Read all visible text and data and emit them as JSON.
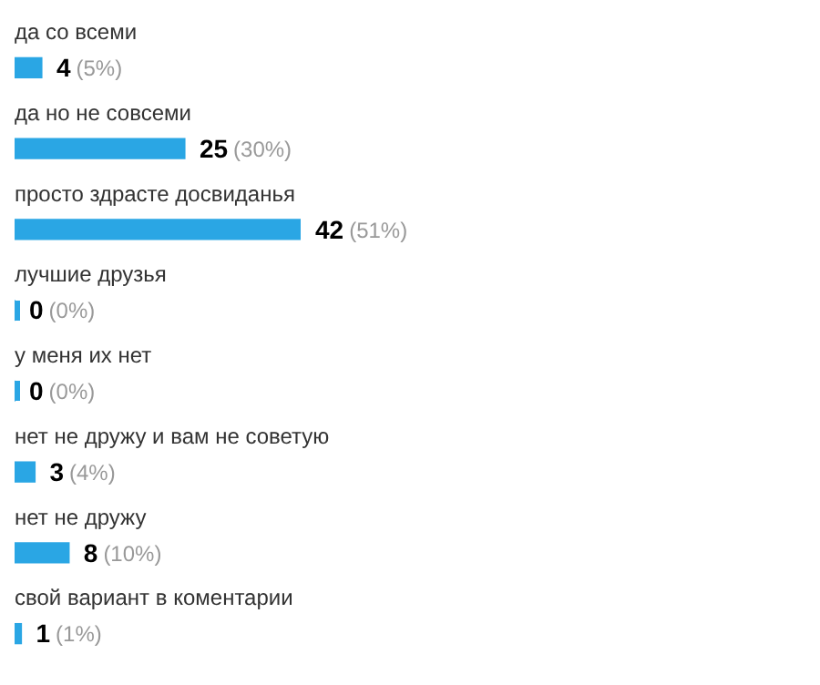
{
  "chart_data": {
    "type": "bar",
    "orientation": "horizontal",
    "categories": [
      "да со всеми",
      "да но не совсеми",
      "просто здрасте досвиданья",
      "лучшие друзья",
      "у меня их нет",
      "нет не дружу и вам не советую",
      "нет не дружу",
      "свой вариант в коментарии"
    ],
    "values": [
      4,
      25,
      42,
      0,
      0,
      3,
      8,
      1
    ],
    "color": "#2aa6e4",
    "data_labels": true,
    "annotations": [
      {
        "text": "(5%)",
        "x": 4,
        "y": "да со всеми"
      },
      {
        "text": "(30%)",
        "x": 25,
        "y": "да но не совсеми"
      },
      {
        "text": "(51%)",
        "x": 42,
        "y": "просто здрасте досвиданья"
      },
      {
        "text": "(0%)",
        "x": 0,
        "y": "лучшие друзья"
      },
      {
        "text": "(0%)",
        "x": 0,
        "y": "у меня их нет"
      },
      {
        "text": "(4%)",
        "x": 3,
        "y": "нет не дружу и вам не советую"
      },
      {
        "text": "(10%)",
        "x": 8,
        "y": "нет не дружу"
      },
      {
        "text": "(1%)",
        "x": 1,
        "y": "свой вариант в коментарии"
      }
    ]
  }
}
